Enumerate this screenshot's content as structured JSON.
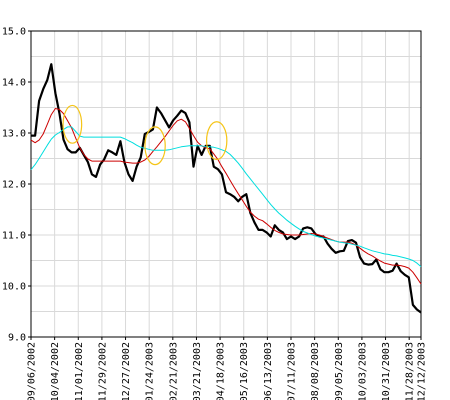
{
  "chart_data": {
    "type": "line",
    "title": "",
    "xlabel": "",
    "ylabel": "",
    "ylim": [
      9.0,
      15.0
    ],
    "y_ticks": [
      "15.0",
      "14.0",
      "13.0",
      "12.0",
      "11.0",
      "10.0",
      "9.0"
    ],
    "x_ticks": [
      "09/06/2002",
      "10/04/2002",
      "11/01/2002",
      "11/29/2002",
      "12/27/2002",
      "01/24/2003",
      "02/21/2003",
      "03/21/2003",
      "04/18/2003",
      "05/16/2003",
      "06/13/2003",
      "07/11/2003",
      "08/08/2003",
      "09/05/2003",
      "10/03/2003",
      "10/31/2003",
      "11/28/2003",
      "12/12/2003"
    ],
    "grid": true,
    "series": [
      {
        "name": "",
        "color": "#000000",
        "values": [
          12.95,
          12.95,
          13.63,
          13.86,
          14.04,
          14.35,
          13.78,
          13.39,
          12.87,
          12.68,
          12.62,
          12.62,
          12.71,
          12.57,
          12.43,
          12.19,
          12.14,
          12.38,
          12.48,
          12.66,
          12.62,
          12.57,
          12.84,
          12.43,
          12.19,
          12.06,
          12.34,
          12.52,
          12.98,
          13.02,
          13.07,
          13.5,
          13.39,
          13.25,
          13.11,
          13.25,
          13.34,
          13.44,
          13.39,
          13.21,
          12.34,
          12.75,
          12.57,
          12.75,
          12.75,
          12.34,
          12.29,
          12.19,
          11.84,
          11.8,
          11.75,
          11.66,
          11.75,
          11.8,
          11.43,
          11.25,
          11.1,
          11.1,
          11.05,
          10.97,
          11.19,
          11.1,
          11.05,
          10.92,
          10.97,
          10.92,
          10.97,
          11.13,
          11.15,
          11.13,
          11.02,
          10.97,
          10.97,
          10.83,
          10.73,
          10.65,
          10.68,
          10.69,
          10.88,
          10.9,
          10.85,
          10.56,
          10.44,
          10.42,
          10.43,
          10.52,
          10.33,
          10.27,
          10.27,
          10.3,
          10.44,
          10.29,
          10.22,
          10.17,
          9.63,
          9.54,
          9.48
        ],
        "start_date": "09/06/2002",
        "end_date": "12/12/2003"
      },
      {
        "name": "",
        "color": "#cc0000",
        "values": [
          12.86,
          12.81,
          12.86,
          12.98,
          13.17,
          13.36,
          13.48,
          13.46,
          13.38,
          13.24,
          13.1,
          12.9,
          12.71,
          12.58,
          12.49,
          12.45,
          12.45,
          12.45,
          12.45,
          12.45,
          12.45,
          12.45,
          12.45,
          12.43,
          12.42,
          12.41,
          12.41,
          12.43,
          12.47,
          12.54,
          12.64,
          12.73,
          12.83,
          12.93,
          13.04,
          13.15,
          13.24,
          13.27,
          13.22,
          13.09,
          12.95,
          12.82,
          12.75,
          12.71,
          12.69,
          12.59,
          12.48,
          12.34,
          12.21,
          12.07,
          11.94,
          11.81,
          11.69,
          11.56,
          11.45,
          11.37,
          11.31,
          11.28,
          11.22,
          11.15,
          11.09,
          11.05,
          11.02,
          11.01,
          11.0,
          11.0,
          11.0,
          11.01,
          11.02,
          11.03,
          11.02,
          11.0,
          10.97,
          10.94,
          10.91,
          10.88,
          10.86,
          10.86,
          10.86,
          10.84,
          10.8,
          10.74,
          10.68,
          10.63,
          10.59,
          10.54,
          10.49,
          10.45,
          10.43,
          10.41,
          10.41,
          10.4,
          10.38,
          10.35,
          10.27,
          10.16,
          10.04
        ],
        "start_date": "09/06/2002",
        "end_date": "12/12/2003"
      },
      {
        "name": "",
        "color": "#00dede",
        "values": [
          12.28,
          12.38,
          12.5,
          12.63,
          12.76,
          12.88,
          12.96,
          13.01,
          13.07,
          13.12,
          13.12,
          13.03,
          12.94,
          12.92,
          12.92,
          12.92,
          12.92,
          12.92,
          12.92,
          12.92,
          12.92,
          12.92,
          12.92,
          12.89,
          12.85,
          12.81,
          12.76,
          12.72,
          12.7,
          12.68,
          12.66,
          12.66,
          12.66,
          12.66,
          12.67,
          12.69,
          12.71,
          12.73,
          12.74,
          12.75,
          12.75,
          12.75,
          12.75,
          12.73,
          12.73,
          12.72,
          12.7,
          12.67,
          12.64,
          12.58,
          12.5,
          12.41,
          12.31,
          12.2,
          12.1,
          12.0,
          11.9,
          11.8,
          11.7,
          11.6,
          11.51,
          11.43,
          11.36,
          11.29,
          11.23,
          11.17,
          11.12,
          11.07,
          11.04,
          11.01,
          10.98,
          10.96,
          10.94,
          10.92,
          10.9,
          10.88,
          10.86,
          10.85,
          10.84,
          10.82,
          10.8,
          10.78,
          10.75,
          10.72,
          10.69,
          10.67,
          10.65,
          10.63,
          10.62,
          10.6,
          10.59,
          10.57,
          10.55,
          10.53,
          10.5,
          10.45,
          10.38
        ],
        "start_date": "09/06/2002",
        "end_date": "12/12/2003"
      }
    ],
    "annotations": [
      {
        "type": "ellipse",
        "color": "#f5c518",
        "x_date": "10/25/2002",
        "y": 13.17,
        "rx_days": 11,
        "ry": 0.37
      },
      {
        "type": "ellipse",
        "color": "#f5c518",
        "x_date": "01/31/2003",
        "y": 12.75,
        "rx_days": 12,
        "ry": 0.37
      },
      {
        "type": "ellipse",
        "color": "#f5c518",
        "x_date": "04/14/2003",
        "y": 12.85,
        "rx_days": 12,
        "ry": 0.37
      }
    ]
  }
}
